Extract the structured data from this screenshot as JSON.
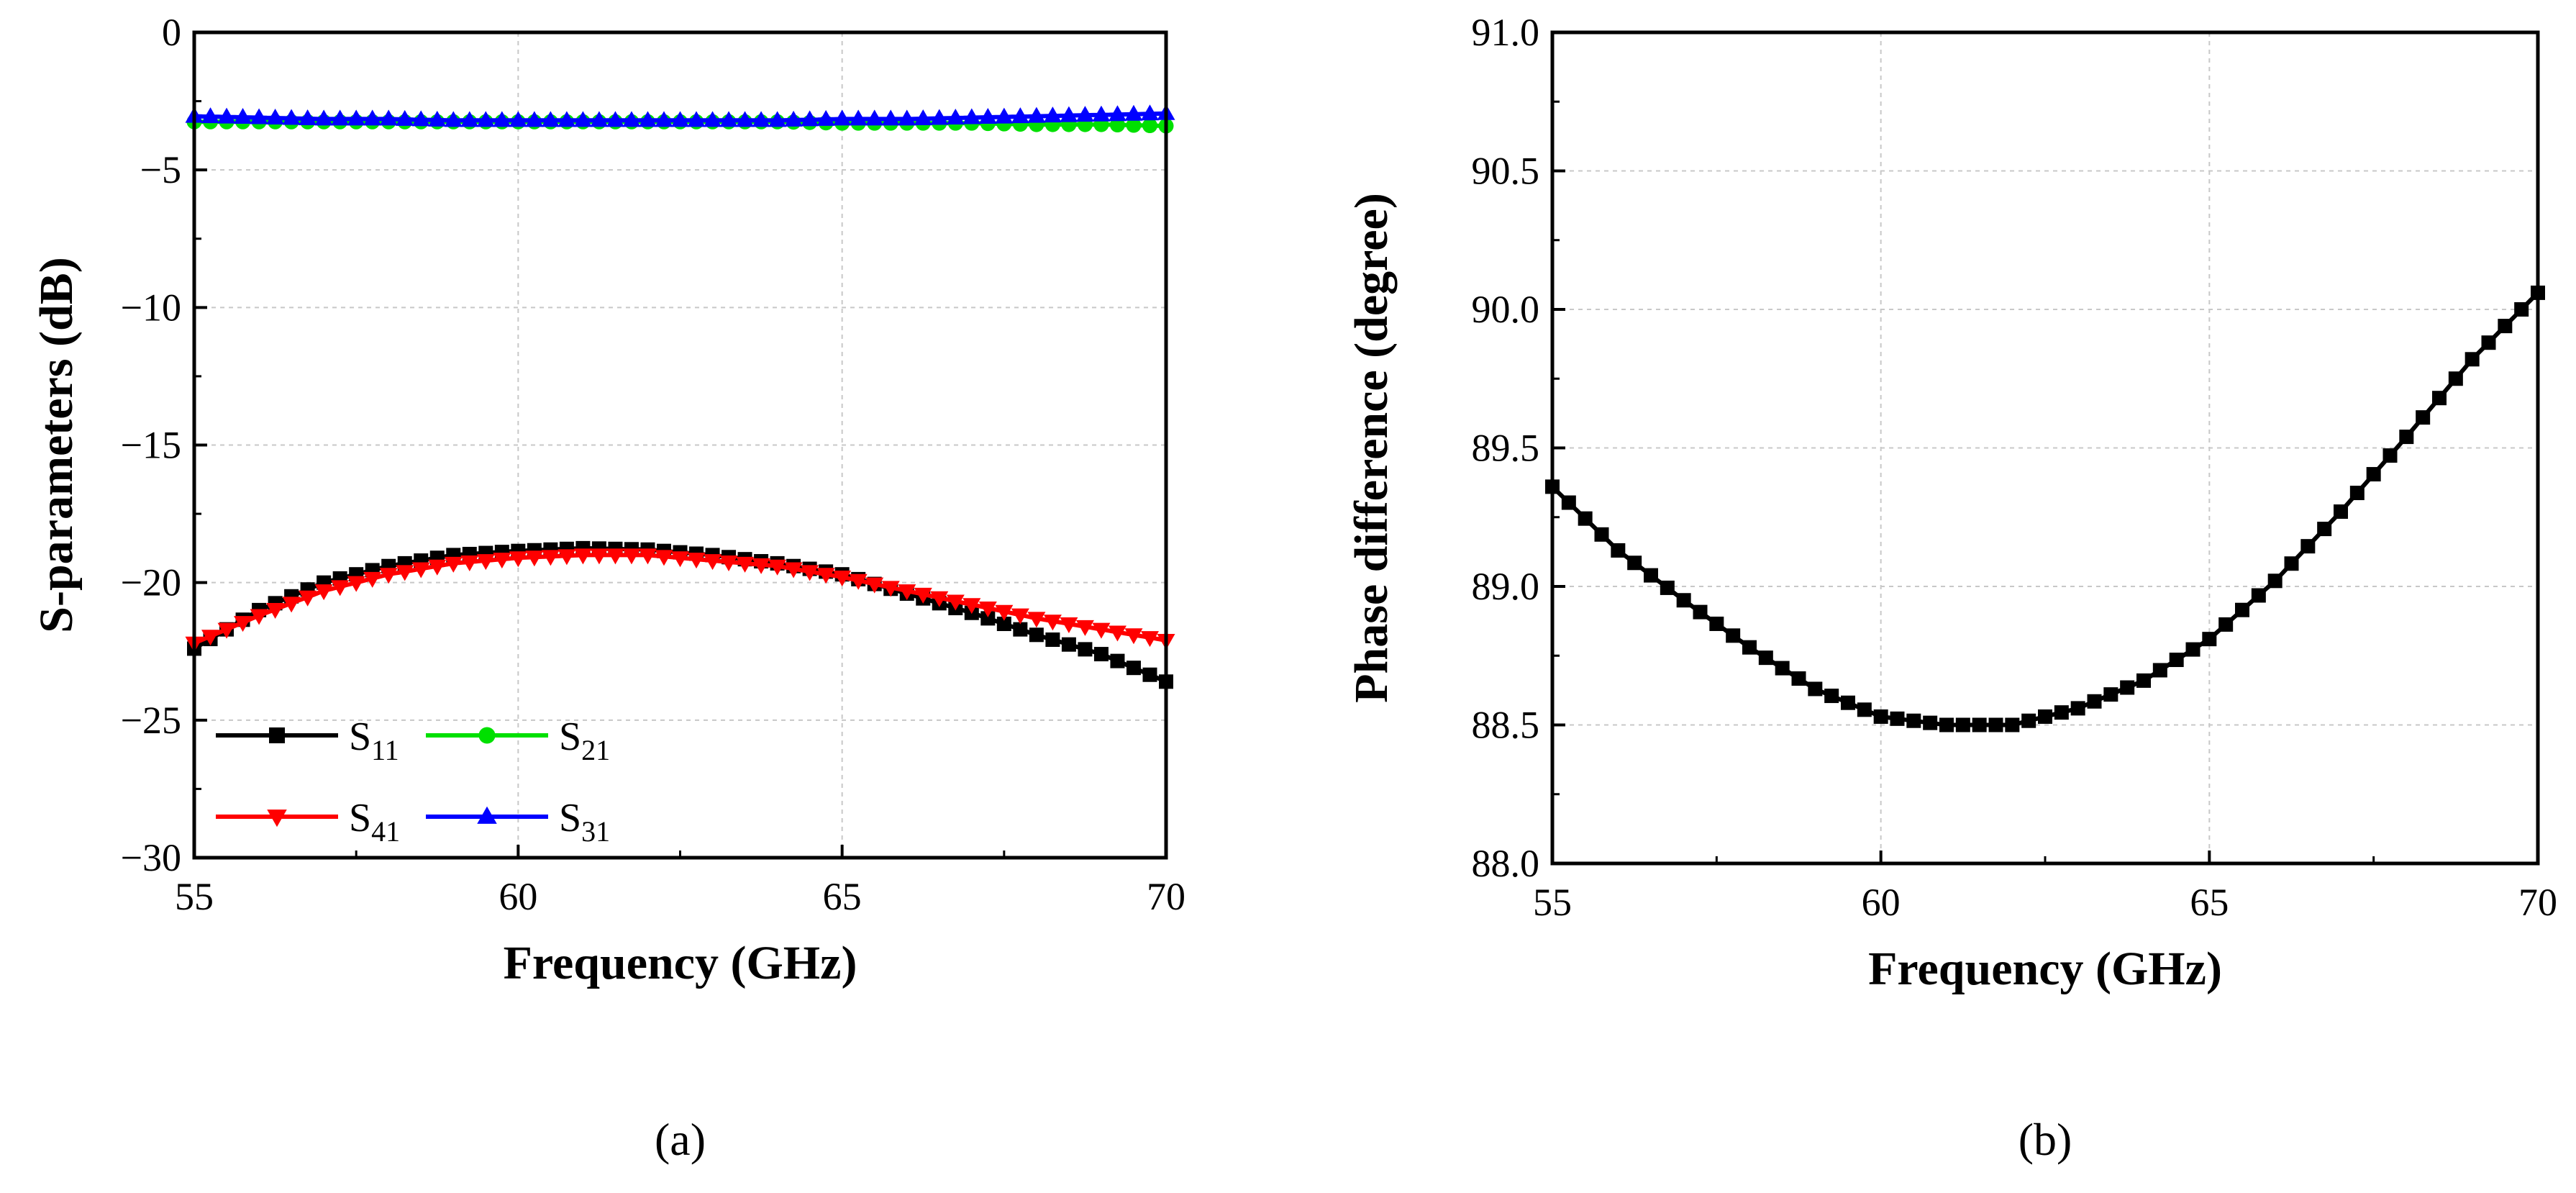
{
  "chart_data": [
    {
      "panel_label": "(a)",
      "type": "line",
      "xlabel": "Frequency (GHz)",
      "ylabel": "S-parameters (dB)",
      "xlim": [
        55,
        70
      ],
      "ylim": [
        -30,
        0
      ],
      "xticks": [
        "55",
        "60",
        "65",
        "70"
      ],
      "yticks": [
        "0",
        "−5",
        "−10",
        "−15",
        "−20",
        "−25",
        "−30"
      ],
      "grid": true,
      "legend_position": "bottom-left",
      "series": [
        {
          "name": "S11",
          "name_base": "S",
          "name_sub": "11",
          "color": "#000000",
          "marker": "square",
          "x": [
            55,
            56,
            57,
            58,
            59,
            60,
            61,
            62,
            63,
            64,
            65,
            66,
            67,
            68,
            69,
            70
          ],
          "y": [
            -22.4,
            -21.0,
            -20.0,
            -19.4,
            -19.0,
            -18.85,
            -18.75,
            -18.8,
            -19.0,
            -19.3,
            -19.7,
            -20.4,
            -21.1,
            -21.9,
            -22.6,
            -23.6
          ]
        },
        {
          "name": "S21",
          "name_base": "S",
          "name_sub": "21",
          "color": "#00e000",
          "marker": "circle",
          "x": [
            55,
            56,
            57,
            58,
            59,
            60,
            61,
            62,
            63,
            64,
            65,
            66,
            67,
            68,
            69,
            70
          ],
          "y": [
            -3.25,
            -3.25,
            -3.25,
            -3.25,
            -3.25,
            -3.25,
            -3.25,
            -3.25,
            -3.25,
            -3.25,
            -3.3,
            -3.3,
            -3.3,
            -3.35,
            -3.35,
            -3.4
          ]
        },
        {
          "name": "S41",
          "name_base": "S",
          "name_sub": "41",
          "color": "#ff0000",
          "marker": "triangle-down",
          "x": [
            55,
            56,
            57,
            58,
            59,
            60,
            61,
            62,
            63,
            64,
            65,
            66,
            67,
            68,
            69,
            70
          ],
          "y": [
            -22.2,
            -21.2,
            -20.3,
            -19.7,
            -19.3,
            -19.1,
            -19.0,
            -19.0,
            -19.2,
            -19.4,
            -19.8,
            -20.3,
            -20.8,
            -21.3,
            -21.7,
            -22.1
          ]
        },
        {
          "name": "S31",
          "name_base": "S",
          "name_sub": "31",
          "color": "#0000ff",
          "marker": "triangle-up",
          "x": [
            55,
            56,
            57,
            58,
            59,
            60,
            61,
            62,
            63,
            64,
            65,
            66,
            67,
            68,
            69,
            70
          ],
          "y": [
            -3.05,
            -3.1,
            -3.15,
            -3.15,
            -3.2,
            -3.2,
            -3.2,
            -3.2,
            -3.2,
            -3.2,
            -3.15,
            -3.15,
            -3.1,
            -3.05,
            -3.0,
            -2.95
          ]
        }
      ]
    },
    {
      "panel_label": "(b)",
      "type": "line",
      "xlabel": "Frequency (GHz)",
      "ylabel": "Phase difference (degree)",
      "xlim": [
        55,
        70
      ],
      "ylim": [
        88.0,
        91.0
      ],
      "xticks": [
        "55",
        "60",
        "65",
        "70"
      ],
      "yticks": [
        "91.0",
        "90.5",
        "90.0",
        "89.5",
        "89.0",
        "88.5",
        "88.0"
      ],
      "grid": true,
      "series": [
        {
          "name": "",
          "color": "#000000",
          "marker": "square",
          "x": [
            55,
            56,
            57,
            58,
            59,
            60,
            61,
            62,
            63,
            64,
            65,
            66,
            67,
            68,
            69,
            70
          ],
          "y": [
            89.36,
            89.13,
            88.95,
            88.78,
            88.63,
            88.53,
            88.5,
            88.5,
            88.56,
            88.66,
            88.81,
            89.02,
            89.27,
            89.54,
            89.82,
            90.06
          ]
        }
      ]
    }
  ]
}
